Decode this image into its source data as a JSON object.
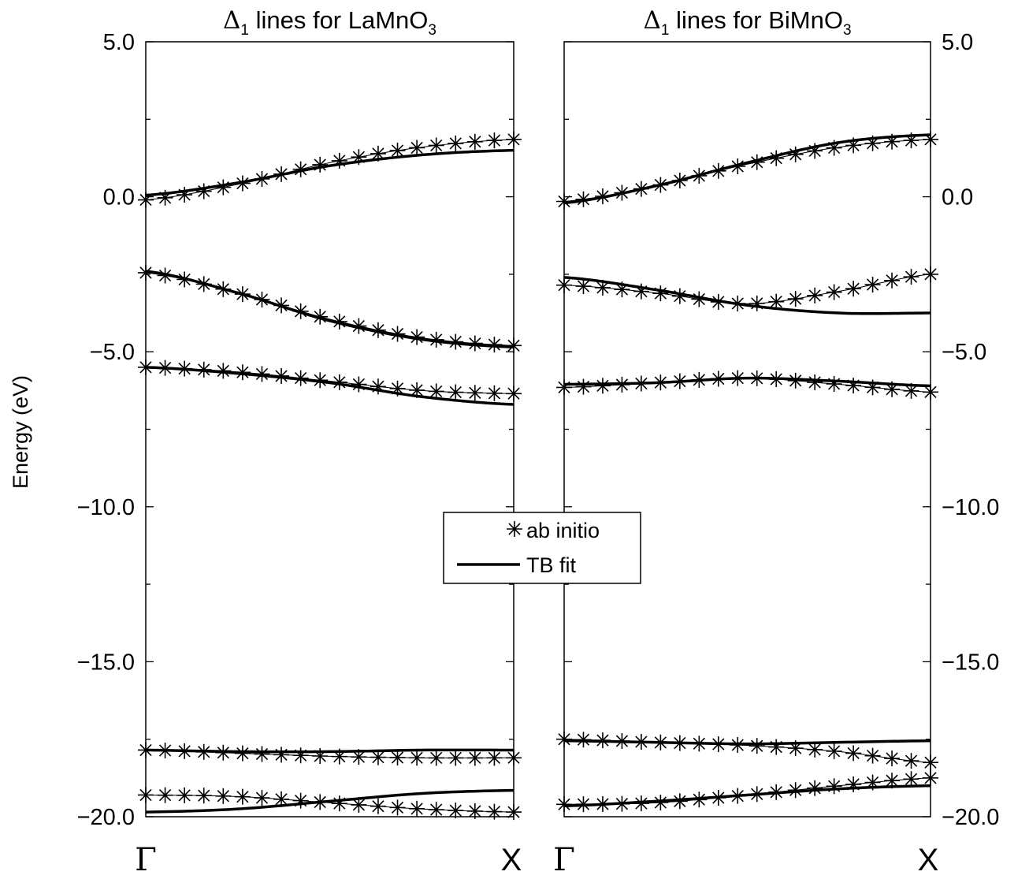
{
  "chart_data": {
    "type": "line",
    "ylabel": "Energy (eV)",
    "ylim": [
      -20.0,
      5.0
    ],
    "yticks": [
      "5.0",
      "0.0",
      "−5.0",
      "−10.0",
      "−15.0",
      "−20.0"
    ],
    "ytick_values": [
      5.0,
      0.0,
      -5.0,
      -10.0,
      -15.0,
      -20.0
    ],
    "xlim": [
      0,
      1
    ],
    "xtick_labels": [
      "Γ",
      "X"
    ],
    "legend": {
      "position": "center",
      "entries": [
        {
          "label": "ab initio",
          "marker": "asterisk"
        },
        {
          "label": "TB fit",
          "marker": "line"
        }
      ]
    },
    "colors": {
      "data": "#000000",
      "frame": "#000000",
      "background": "#ffffff"
    },
    "panels": [
      {
        "title_symbol": "Δ",
        "title_subscript": "1",
        "title_text": " lines for LaMnO",
        "title_subscript2": "3",
        "series": [
          {
            "type": "abinitio",
            "points": [
              [
                0.0,
                -0.1
              ],
              [
                0.25,
                0.4
              ],
              [
                0.5,
                1.1
              ],
              [
                0.75,
                1.6
              ],
              [
                1.0,
                1.85
              ]
            ]
          },
          {
            "type": "tbfit",
            "points": [
              [
                0.0,
                0.05
              ],
              [
                0.25,
                0.45
              ],
              [
                0.5,
                1.0
              ],
              [
                0.75,
                1.35
              ],
              [
                1.0,
                1.5
              ]
            ]
          },
          {
            "type": "abinitio",
            "points": [
              [
                0.0,
                -2.45
              ],
              [
                0.25,
                -3.1
              ],
              [
                0.5,
                -3.95
              ],
              [
                0.75,
                -4.55
              ],
              [
                1.0,
                -4.8
              ]
            ]
          },
          {
            "type": "tbfit",
            "points": [
              [
                0.0,
                -2.4
              ],
              [
                0.25,
                -3.1
              ],
              [
                0.5,
                -4.0
              ],
              [
                0.75,
                -4.6
              ],
              [
                1.0,
                -4.85
              ]
            ]
          },
          {
            "type": "abinitio",
            "points": [
              [
                0.0,
                -5.5
              ],
              [
                0.25,
                -5.65
              ],
              [
                0.5,
                -5.95
              ],
              [
                0.75,
                -6.25
              ],
              [
                1.0,
                -6.35
              ]
            ]
          },
          {
            "type": "tbfit",
            "points": [
              [
                0.0,
                -5.5
              ],
              [
                0.25,
                -5.7
              ],
              [
                0.5,
                -6.0
              ],
              [
                0.75,
                -6.45
              ],
              [
                1.0,
                -6.7
              ]
            ]
          },
          {
            "type": "abinitio",
            "points": [
              [
                0.0,
                -17.85
              ],
              [
                0.25,
                -17.95
              ],
              [
                0.5,
                -18.05
              ],
              [
                0.75,
                -18.1
              ],
              [
                1.0,
                -18.1
              ]
            ]
          },
          {
            "type": "tbfit",
            "points": [
              [
                0.0,
                -17.85
              ],
              [
                0.25,
                -17.9
              ],
              [
                0.5,
                -17.9
              ],
              [
                0.75,
                -17.85
              ],
              [
                1.0,
                -17.85
              ]
            ]
          },
          {
            "type": "abinitio",
            "points": [
              [
                0.0,
                -19.3
              ],
              [
                0.25,
                -19.35
              ],
              [
                0.5,
                -19.55
              ],
              [
                0.75,
                -19.75
              ],
              [
                1.0,
                -19.85
              ]
            ]
          },
          {
            "type": "tbfit",
            "points": [
              [
                0.0,
                -19.85
              ],
              [
                0.25,
                -19.75
              ],
              [
                0.5,
                -19.5
              ],
              [
                0.75,
                -19.25
              ],
              [
                1.0,
                -19.15
              ]
            ]
          }
        ]
      },
      {
        "title_symbol": "Δ",
        "title_subscript": "1",
        "title_text": " lines for BiMnO",
        "title_subscript2": "3",
        "series": [
          {
            "type": "abinitio",
            "points": [
              [
                0.0,
                -0.15
              ],
              [
                0.25,
                0.35
              ],
              [
                0.5,
                1.05
              ],
              [
                0.75,
                1.6
              ],
              [
                1.0,
                1.85
              ]
            ]
          },
          {
            "type": "tbfit",
            "points": [
              [
                0.0,
                -0.2
              ],
              [
                0.25,
                0.35
              ],
              [
                0.5,
                1.1
              ],
              [
                0.75,
                1.75
              ],
              [
                1.0,
                2.0
              ]
            ]
          },
          {
            "type": "abinitio",
            "points": [
              [
                0.0,
                -2.85
              ],
              [
                0.25,
                -3.1
              ],
              [
                0.5,
                -3.45
              ],
              [
                0.75,
                -3.05
              ],
              [
                1.0,
                -2.5
              ]
            ]
          },
          {
            "type": "tbfit",
            "points": [
              [
                0.0,
                -2.6
              ],
              [
                0.25,
                -3.0
              ],
              [
                0.5,
                -3.5
              ],
              [
                0.75,
                -3.75
              ],
              [
                1.0,
                -3.75
              ]
            ]
          },
          {
            "type": "abinitio",
            "points": [
              [
                0.0,
                -6.15
              ],
              [
                0.25,
                -6.0
              ],
              [
                0.5,
                -5.85
              ],
              [
                0.75,
                -6.05
              ],
              [
                1.0,
                -6.3
              ]
            ]
          },
          {
            "type": "tbfit",
            "points": [
              [
                0.0,
                -6.05
              ],
              [
                0.25,
                -6.0
              ],
              [
                0.5,
                -5.85
              ],
              [
                0.75,
                -5.95
              ],
              [
                1.0,
                -6.1
              ]
            ]
          },
          {
            "type": "abinitio",
            "points": [
              [
                0.0,
                -17.5
              ],
              [
                0.25,
                -17.6
              ],
              [
                0.5,
                -17.7
              ],
              [
                0.75,
                -17.9
              ],
              [
                1.0,
                -18.25
              ]
            ]
          },
          {
            "type": "tbfit",
            "points": [
              [
                0.0,
                -17.55
              ],
              [
                0.25,
                -17.6
              ],
              [
                0.5,
                -17.65
              ],
              [
                0.75,
                -17.6
              ],
              [
                1.0,
                -17.55
              ]
            ]
          },
          {
            "type": "abinitio",
            "points": [
              [
                0.0,
                -19.6
              ],
              [
                0.25,
                -19.55
              ],
              [
                0.5,
                -19.3
              ],
              [
                0.75,
                -19.0
              ],
              [
                1.0,
                -18.75
              ]
            ]
          },
          {
            "type": "tbfit",
            "points": [
              [
                0.0,
                -19.65
              ],
              [
                0.25,
                -19.5
              ],
              [
                0.5,
                -19.3
              ],
              [
                0.75,
                -19.1
              ],
              [
                1.0,
                -19.0
              ]
            ]
          }
        ]
      }
    ]
  }
}
